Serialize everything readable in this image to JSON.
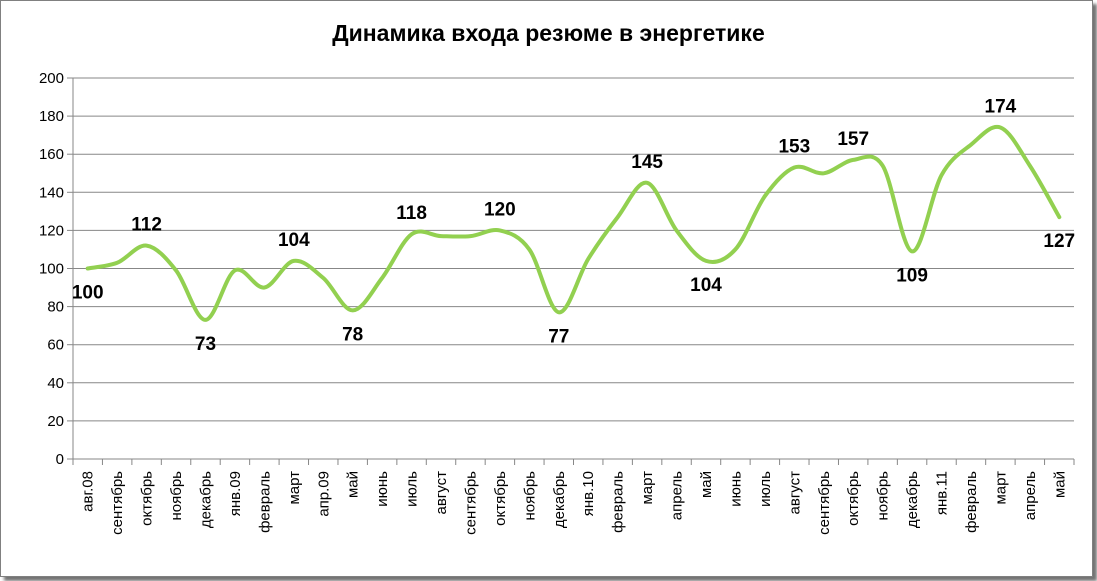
{
  "chart_data": {
    "type": "line",
    "title": "Динамика входа резюме в энергетике",
    "xlabel": "",
    "ylabel": "",
    "ylim": [
      0,
      200
    ],
    "yticks": [
      0,
      20,
      40,
      60,
      80,
      100,
      120,
      140,
      160,
      180,
      200
    ],
    "grid": true,
    "line_color": "#92D050",
    "categories": [
      "авг.08",
      "сентябрь",
      "октябрь",
      "ноябрь",
      "декабрь",
      "янв.09",
      "февраль",
      "март",
      "апр.09",
      "май",
      "июнь",
      "июль",
      "август",
      "сентябрь",
      "октябрь",
      "ноябрь",
      "декабрь",
      "янв.10",
      "февраль",
      "март",
      "апрель",
      "май",
      "июнь",
      "июль",
      "август",
      "сентябрь",
      "октябрь",
      "ноябрь",
      "декабрь",
      "янв.11",
      "февраль",
      "март",
      "апрель",
      "май"
    ],
    "values": [
      100,
      103,
      112,
      99,
      73,
      99,
      90,
      104,
      95,
      78,
      95,
      118,
      117,
      117,
      120,
      110,
      77,
      105,
      127,
      145,
      120,
      104,
      110,
      138,
      153,
      150,
      157,
      154,
      109,
      149,
      165,
      174,
      154,
      127
    ],
    "data_labels": [
      {
        "index": 0,
        "text": "100",
        "pos": "below"
      },
      {
        "index": 2,
        "text": "112",
        "pos": "above"
      },
      {
        "index": 4,
        "text": "73",
        "pos": "below"
      },
      {
        "index": 7,
        "text": "104",
        "pos": "above"
      },
      {
        "index": 9,
        "text": "78",
        "pos": "below"
      },
      {
        "index": 11,
        "text": "118",
        "pos": "above"
      },
      {
        "index": 14,
        "text": "120",
        "pos": "above"
      },
      {
        "index": 16,
        "text": "77",
        "pos": "below"
      },
      {
        "index": 19,
        "text": "145",
        "pos": "above"
      },
      {
        "index": 21,
        "text": "104",
        "pos": "below"
      },
      {
        "index": 24,
        "text": "153",
        "pos": "above"
      },
      {
        "index": 26,
        "text": "157",
        "pos": "above"
      },
      {
        "index": 28,
        "text": "109",
        "pos": "below"
      },
      {
        "index": 31,
        "text": "174",
        "pos": "above"
      },
      {
        "index": 33,
        "text": "127",
        "pos": "below"
      }
    ]
  }
}
